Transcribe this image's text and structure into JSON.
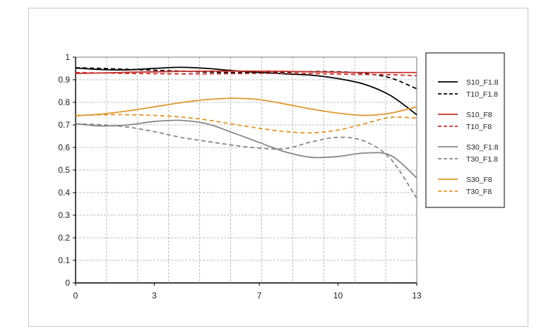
{
  "chart_data": {
    "type": "line",
    "title": "",
    "xlabel": "",
    "ylabel": "",
    "xlim": [
      0,
      13
    ],
    "ylim": [
      0,
      1
    ],
    "x_ticks": [
      0,
      3,
      7,
      10,
      13
    ],
    "y_ticks": [
      0,
      0.1,
      0.2,
      0.3,
      0.4,
      0.5,
      0.6,
      0.7,
      0.8,
      0.9,
      1
    ],
    "x_tick_labels": [
      "0",
      "3",
      "7",
      "10",
      "13"
    ],
    "y_tick_labels": [
      "0",
      "0.1",
      "0.2",
      "0.3",
      "0.4",
      "0.5",
      "0.6",
      "0.7",
      "0.8",
      "0.9",
      "1"
    ],
    "grid": true,
    "legend_position": "right",
    "series": [
      {
        "name": "S10_F1.8",
        "color": "#000000",
        "dash": "solid",
        "x": [
          0,
          1,
          2,
          3,
          4,
          5,
          6,
          7,
          8,
          9,
          10,
          11,
          12,
          13
        ],
        "y": [
          0.952,
          0.945,
          0.944,
          0.95,
          0.955,
          0.95,
          0.94,
          0.932,
          0.926,
          0.92,
          0.905,
          0.88,
          0.83,
          0.745
        ]
      },
      {
        "name": "T10_F1.8",
        "color": "#000000",
        "dash": "dashed",
        "x": [
          0,
          1,
          2,
          3,
          4,
          5,
          6,
          7,
          8,
          9,
          10,
          11,
          12,
          13
        ],
        "y": [
          0.953,
          0.95,
          0.946,
          0.942,
          0.938,
          0.934,
          0.932,
          0.932,
          0.934,
          0.936,
          0.935,
          0.928,
          0.908,
          0.86
        ]
      },
      {
        "name": "S10_F8",
        "color": "#c8302c",
        "dash": "solid",
        "x": [
          0,
          1,
          2,
          3,
          4,
          5,
          6,
          7,
          8,
          9,
          10,
          11,
          12,
          13
        ],
        "y": [
          0.928,
          0.93,
          0.933,
          0.935,
          0.937,
          0.938,
          0.938,
          0.938,
          0.937,
          0.935,
          0.933,
          0.932,
          0.932,
          0.932
        ]
      },
      {
        "name": "T10_F8",
        "color": "#c8302c",
        "dash": "dashed",
        "x": [
          0,
          1,
          2,
          3,
          4,
          5,
          6,
          7,
          8,
          9,
          10,
          11,
          12,
          13
        ],
        "y": [
          0.932,
          0.93,
          0.928,
          0.927,
          0.926,
          0.926,
          0.927,
          0.928,
          0.928,
          0.927,
          0.925,
          0.923,
          0.922,
          0.918
        ]
      },
      {
        "name": "S30_F1.8",
        "color": "#888888",
        "dash": "solid",
        "x": [
          0,
          1,
          2,
          3,
          4,
          5,
          6,
          7,
          8,
          9,
          10,
          11,
          12,
          13
        ],
        "y": [
          0.705,
          0.695,
          0.7,
          0.715,
          0.72,
          0.705,
          0.665,
          0.622,
          0.58,
          0.556,
          0.56,
          0.575,
          0.565,
          0.465
        ]
      },
      {
        "name": "T30_F1.8",
        "color": "#888888",
        "dash": "dashed",
        "x": [
          0,
          1,
          2,
          3,
          4,
          5,
          6,
          7,
          8,
          9,
          10,
          11,
          12,
          13
        ],
        "y": [
          0.705,
          0.7,
          0.69,
          0.67,
          0.645,
          0.627,
          0.61,
          0.597,
          0.595,
          0.625,
          0.645,
          0.628,
          0.55,
          0.375
        ]
      },
      {
        "name": "S30_F8",
        "color": "#e0962e",
        "dash": "solid",
        "x": [
          0,
          1,
          2,
          3,
          4,
          5,
          6,
          7,
          8,
          9,
          10,
          11,
          12,
          13
        ],
        "y": [
          0.74,
          0.748,
          0.762,
          0.78,
          0.798,
          0.812,
          0.818,
          0.812,
          0.792,
          0.77,
          0.752,
          0.742,
          0.752,
          0.78
        ]
      },
      {
        "name": "T30_F8",
        "color": "#e0962e",
        "dash": "dashed",
        "x": [
          0,
          1,
          2,
          3,
          4,
          5,
          6,
          7,
          8,
          9,
          10,
          11,
          12,
          13
        ],
        "y": [
          0.742,
          0.745,
          0.745,
          0.742,
          0.735,
          0.722,
          0.703,
          0.685,
          0.67,
          0.665,
          0.677,
          0.705,
          0.733,
          0.73
        ]
      }
    ]
  },
  "legend_groups": [
    [
      0,
      1
    ],
    [
      2,
      3
    ],
    [
      4,
      5
    ],
    [
      6,
      7
    ]
  ]
}
